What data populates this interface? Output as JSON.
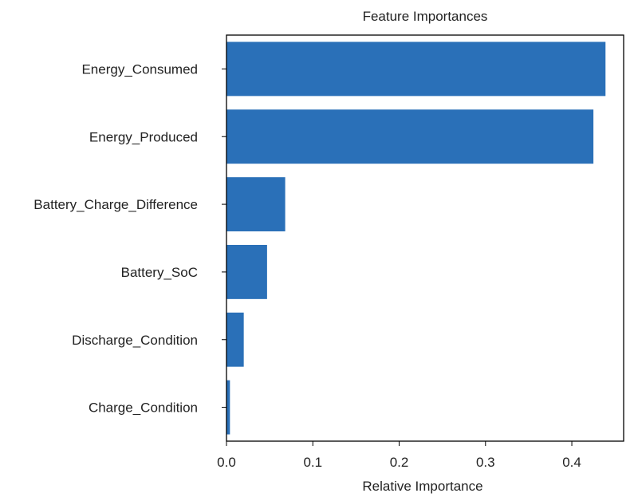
{
  "chart_data": {
    "type": "bar",
    "orientation": "horizontal",
    "title": "Feature Importances",
    "xlabel": "Relative Importance",
    "ylabel": "",
    "categories": [
      "Energy_Consumed",
      "Energy_Produced",
      "Battery_Charge_Difference",
      "Battery_SoC",
      "Discharge_Condition",
      "Charge_Condition"
    ],
    "values": [
      0.439,
      0.425,
      0.068,
      0.047,
      0.02,
      0.004
    ],
    "xlim": [
      0,
      0.46
    ],
    "xticks": [
      "0.0",
      "0.1",
      "0.2",
      "0.3",
      "0.4"
    ],
    "grid": false,
    "colors": {
      "bar": "#2a70b8",
      "axis": "#000000",
      "text": "#222222"
    }
  }
}
